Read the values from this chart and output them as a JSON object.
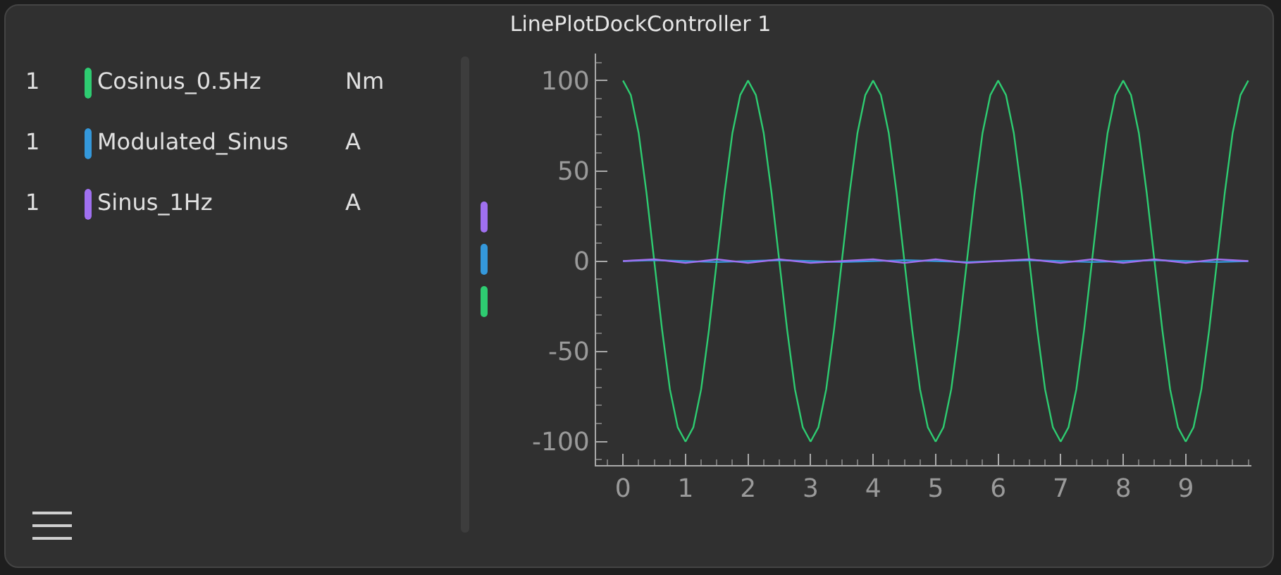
{
  "chart_data": {
    "type": "line",
    "title": "LinePlotDockController 1",
    "annotations": [
      "1",
      "Nm",
      "1",
      "A",
      "1",
      "A"
    ],
    "x": [
      0,
      0.125,
      0.25,
      0.375,
      0.5,
      0.625,
      0.75,
      0.875,
      1,
      1.125,
      1.25,
      1.375,
      1.5,
      1.625,
      1.75,
      1.875,
      2,
      2.125,
      2.25,
      2.375,
      2.5,
      2.625,
      2.75,
      2.875,
      3,
      3.125,
      3.25,
      3.375,
      3.5,
      3.625,
      3.75,
      3.875,
      4,
      4.125,
      4.25,
      4.375,
      4.5,
      4.625,
      4.75,
      4.875,
      5,
      5.125,
      5.25,
      5.375,
      5.5,
      5.625,
      5.75,
      5.875,
      6,
      6.125,
      6.25,
      6.375,
      6.5,
      6.625,
      6.75,
      6.875,
      7,
      7.125,
      7.25,
      7.375,
      7.5,
      7.625,
      7.75,
      7.875,
      8,
      8.125,
      8.25,
      8.375,
      8.5,
      8.625,
      8.75,
      8.875,
      9,
      9.125,
      9.25,
      9.375,
      9.5,
      9.625,
      9.75,
      9.875,
      10
    ],
    "series": [
      {
        "name": "Cosinus_0.5Hz",
        "color": "#2ecc71",
        "values": [
          100,
          92,
          71,
          38,
          0,
          -38,
          -71,
          -92,
          -100,
          -92,
          -71,
          -38,
          0,
          38,
          71,
          92,
          100,
          92,
          71,
          38,
          0,
          -38,
          -71,
          -92,
          -100,
          -92,
          -71,
          -38,
          0,
          38,
          71,
          92,
          100,
          92,
          71,
          38,
          0,
          -38,
          -71,
          -92,
          -100,
          -92,
          -71,
          -38,
          0,
          38,
          71,
          92,
          100,
          92,
          71,
          38,
          0,
          -38,
          -71,
          -92,
          -100,
          -92,
          -71,
          -38,
          0,
          38,
          71,
          92,
          100,
          92,
          71,
          38,
          0,
          -38,
          -71,
          -92,
          -100,
          -92,
          -71,
          -38,
          0,
          38,
          71,
          92,
          100
        ]
      },
      {
        "name": "Modulated_Sinus",
        "color": "#3498db",
        "x": [
          0,
          0.5,
          1,
          1.5,
          2,
          2.5,
          3,
          3.5,
          4,
          4.5,
          5,
          5.5,
          6,
          6.5,
          7,
          7.5,
          8,
          8.5,
          9,
          9.5,
          10
        ],
        "values": [
          0,
          0.5,
          0,
          -0.5,
          0,
          0.5,
          0,
          -0.5,
          0,
          0.5,
          0,
          -0.5,
          0,
          0.5,
          0,
          -0.5,
          0,
          0.5,
          0,
          -0.5,
          0
        ]
      },
      {
        "name": "Sinus_1Hz",
        "color": "#a070f0",
        "x": [
          0,
          0.5,
          1,
          1.5,
          2,
          2.5,
          3,
          3.5,
          4,
          4.5,
          5,
          5.5,
          6,
          6.5,
          7,
          7.5,
          8,
          8.5,
          9,
          9.5,
          10
        ],
        "values": [
          0,
          1,
          -1,
          1,
          -1,
          1,
          -1,
          0,
          1,
          -1,
          1,
          -1,
          0,
          1,
          -1,
          1,
          -1,
          1,
          -1,
          1,
          0
        ]
      }
    ],
    "xlim": [
      -0.43,
      10.05
    ],
    "xticks": [
      0,
      1,
      2,
      3,
      4,
      5,
      6,
      7,
      8,
      9
    ],
    "ylim": [
      -113,
      115
    ],
    "yticks": [
      -100,
      -50,
      0,
      50,
      100
    ],
    "grid": false,
    "legend": "left",
    "marker": "none",
    "line_style": "solid"
  }
}
